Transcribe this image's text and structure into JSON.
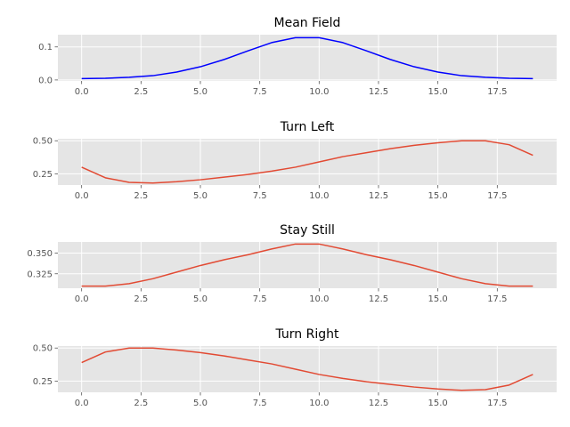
{
  "chart_data": [
    {
      "type": "line",
      "title": "Mean Field",
      "x": [
        0,
        1,
        2,
        3,
        4,
        5,
        6,
        7,
        8,
        9,
        10,
        11,
        12,
        13,
        14,
        15,
        16,
        17,
        18,
        19
      ],
      "values": [
        0.004,
        0.005,
        0.008,
        0.013,
        0.024,
        0.04,
        0.062,
        0.088,
        0.113,
        0.128,
        0.128,
        0.113,
        0.088,
        0.062,
        0.04,
        0.024,
        0.013,
        0.008,
        0.005,
        0.004
      ],
      "color": "#0000ff",
      "xlim": [
        -1.0,
        20.0
      ],
      "ylim": [
        -0.003,
        0.137
      ],
      "xticks": [
        0,
        2.5,
        5,
        7.5,
        10,
        12.5,
        15,
        17.5
      ],
      "xtick_labels": [
        "0.0",
        "2.5",
        "5.0",
        "7.5",
        "10.0",
        "12.5",
        "15.0",
        "17.5"
      ],
      "yticks": [
        0.0,
        0.1
      ],
      "ytick_labels": [
        "0.0",
        "0.1"
      ],
      "grid": true
    },
    {
      "type": "line",
      "title": "Turn Left",
      "x": [
        0,
        1,
        2,
        3,
        4,
        5,
        6,
        7,
        8,
        9,
        10,
        11,
        12,
        13,
        14,
        15,
        16,
        17,
        18,
        19
      ],
      "values": [
        0.3,
        0.22,
        0.185,
        0.18,
        0.19,
        0.205,
        0.225,
        0.245,
        0.27,
        0.3,
        0.34,
        0.38,
        0.41,
        0.44,
        0.465,
        0.485,
        0.5,
        0.5,
        0.47,
        0.39
      ],
      "color": "#e24a33",
      "xlim": [
        -1.0,
        20.0
      ],
      "ylim": [
        0.165,
        0.515
      ],
      "xticks": [
        0,
        2.5,
        5,
        7.5,
        10,
        12.5,
        15,
        17.5
      ],
      "xtick_labels": [
        "0.0",
        "2.5",
        "5.0",
        "7.5",
        "10.0",
        "12.5",
        "15.0",
        "17.5"
      ],
      "yticks": [
        0.25,
        0.5
      ],
      "ytick_labels": [
        "0.25",
        "0.50"
      ],
      "grid": true
    },
    {
      "type": "line",
      "title": "Stay Still",
      "x": [
        0,
        1,
        2,
        3,
        4,
        5,
        6,
        7,
        8,
        9,
        10,
        11,
        12,
        13,
        14,
        15,
        16,
        17,
        18,
        19
      ],
      "values": [
        0.31,
        0.31,
        0.313,
        0.319,
        0.327,
        0.335,
        0.342,
        0.348,
        0.355,
        0.361,
        0.361,
        0.355,
        0.348,
        0.342,
        0.335,
        0.327,
        0.319,
        0.313,
        0.31,
        0.31
      ],
      "color": "#e24a33",
      "xlim": [
        -1.0,
        20.0
      ],
      "ylim": [
        0.3075,
        0.3635
      ],
      "xticks": [
        0,
        2.5,
        5,
        7.5,
        10,
        12.5,
        15,
        17.5
      ],
      "xtick_labels": [
        "0.0",
        "2.5",
        "5.0",
        "7.5",
        "10.0",
        "12.5",
        "15.0",
        "17.5"
      ],
      "yticks": [
        0.325,
        0.35
      ],
      "ytick_labels": [
        "0.325",
        "0.350"
      ],
      "grid": true
    },
    {
      "type": "line",
      "title": "Turn Right",
      "x": [
        0,
        1,
        2,
        3,
        4,
        5,
        6,
        7,
        8,
        9,
        10,
        11,
        12,
        13,
        14,
        15,
        16,
        17,
        18,
        19
      ],
      "values": [
        0.39,
        0.47,
        0.5,
        0.5,
        0.485,
        0.465,
        0.44,
        0.41,
        0.38,
        0.34,
        0.3,
        0.27,
        0.245,
        0.225,
        0.205,
        0.19,
        0.18,
        0.185,
        0.22,
        0.3
      ],
      "color": "#e24a33",
      "xlim": [
        -1.0,
        20.0
      ],
      "ylim": [
        0.165,
        0.515
      ],
      "xticks": [
        0,
        2.5,
        5,
        7.5,
        10,
        12.5,
        15,
        17.5
      ],
      "xtick_labels": [
        "0.0",
        "2.5",
        "5.0",
        "7.5",
        "10.0",
        "12.5",
        "15.0",
        "17.5"
      ],
      "yticks": [
        0.25,
        0.5
      ],
      "ytick_labels": [
        "0.25",
        "0.50"
      ],
      "grid": true
    }
  ]
}
